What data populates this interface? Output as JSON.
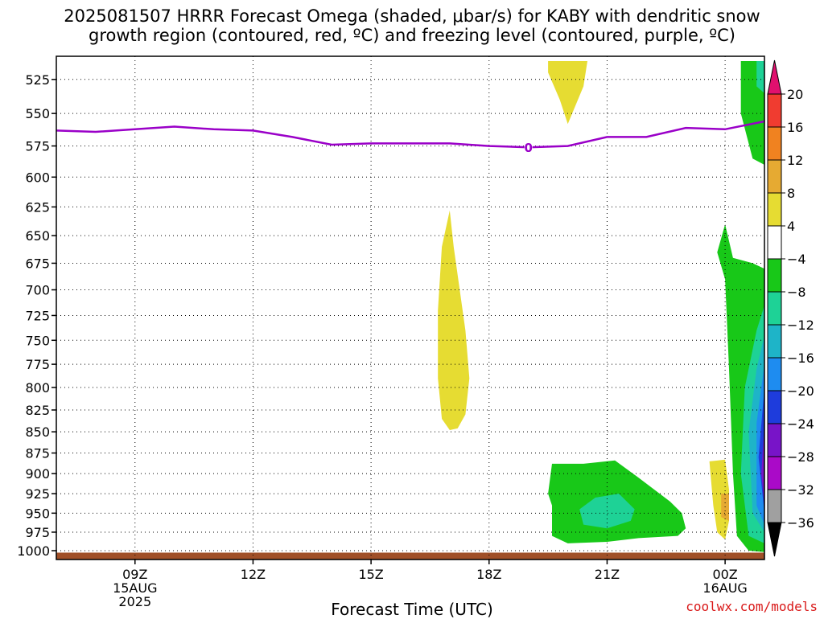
{
  "title": {
    "line1": "2025081507 HRRR Forecast Omega (shaded, μbar/s) for KABY with dendritic snow",
    "line2": "growth region (contoured, red, ºC) and freezing level (contoured, purple, ºC)"
  },
  "xlabel": "Forecast Time (UTC)",
  "credit": "coolwx.com/models",
  "chart_data": {
    "type": "heatmap",
    "title": "2025081507 HRRR Forecast Omega (shaded, μbar/s) for KABY with dendritic snow growth region (contoured, red, ºC) and freezing level (contoured, purple, ºC)",
    "xlabel": "Forecast Time (UTC)",
    "ylabel": "",
    "x_unit": "forecast hour from 2025081507",
    "xlim": [
      7,
      25
    ],
    "y_scale": "log-pressure",
    "ylim": [
      1000,
      512
    ],
    "y_ticks": [
      525,
      550,
      575,
      600,
      625,
      650,
      675,
      700,
      725,
      750,
      775,
      800,
      825,
      850,
      875,
      900,
      925,
      950,
      975,
      1000
    ],
    "x_ticks": [
      {
        "hour": 9,
        "lines": [
          "09Z",
          "15AUG",
          "2025"
        ]
      },
      {
        "hour": 12,
        "lines": [
          "12Z"
        ]
      },
      {
        "hour": 15,
        "lines": [
          "15Z"
        ]
      },
      {
        "hour": 18,
        "lines": [
          "18Z"
        ]
      },
      {
        "hour": 21,
        "lines": [
          "21Z"
        ]
      },
      {
        "hour": 24,
        "lines": [
          "00Z",
          "16AUG"
        ]
      }
    ],
    "grid": true,
    "colorbar": {
      "levels": [
        36,
        20,
        16,
        12,
        8,
        4,
        -4,
        -8,
        -12,
        -16,
        -20,
        -24,
        -28,
        -32,
        -36
      ],
      "tick_labels": [
        "20",
        "16",
        "12",
        "8",
        "4",
        "−4",
        "−8",
        "−12",
        "−16",
        "−20",
        "−24",
        "−28",
        "−32",
        "−36"
      ],
      "colors": [
        "#e0106e",
        "#f03c30",
        "#f08220",
        "#e6aa32",
        "#e6dc32",
        "#ffffff",
        "#18c818",
        "#1ed296",
        "#1eb4c8",
        "#1e8cf0",
        "#1e3cdc",
        "#7814c8",
        "#aa0ac8",
        "#a0a0a0",
        "#000000"
      ]
    },
    "freezing_level": {
      "label": "0",
      "color": "#9a00c8",
      "points": [
        {
          "hour": 7.0,
          "p": 563
        },
        {
          "hour": 8.0,
          "p": 564
        },
        {
          "hour": 9.0,
          "p": 562
        },
        {
          "hour": 10.0,
          "p": 560
        },
        {
          "hour": 11.0,
          "p": 562
        },
        {
          "hour": 12.0,
          "p": 563
        },
        {
          "hour": 13.0,
          "p": 568
        },
        {
          "hour": 14.0,
          "p": 574
        },
        {
          "hour": 15.0,
          "p": 573
        },
        {
          "hour": 16.0,
          "p": 573
        },
        {
          "hour": 17.0,
          "p": 573
        },
        {
          "hour": 18.0,
          "p": 575
        },
        {
          "hour": 19.0,
          "p": 576
        },
        {
          "hour": 20.0,
          "p": 575
        },
        {
          "hour": 21.0,
          "p": 568
        },
        {
          "hour": 22.0,
          "p": 568
        },
        {
          "hour": 23.0,
          "p": 561
        },
        {
          "hour": 24.0,
          "p": 562
        },
        {
          "hour": 25.0,
          "p": 556
        }
      ]
    },
    "regions": [
      {
        "value": 4,
        "color": "#e6dc32",
        "points": [
          [
            19.5,
            512
          ],
          [
            20.5,
            512
          ],
          [
            20.4,
            530
          ],
          [
            20.0,
            558
          ],
          [
            19.8,
            540
          ],
          [
            19.5,
            520
          ]
        ]
      },
      {
        "value": 4,
        "color": "#e6dc32",
        "points": [
          [
            17.0,
            628
          ],
          [
            17.1,
            660
          ],
          [
            17.4,
            740
          ],
          [
            17.5,
            790
          ],
          [
            17.4,
            830
          ],
          [
            17.2,
            846
          ],
          [
            17.0,
            848
          ],
          [
            16.8,
            835
          ],
          [
            16.7,
            790
          ],
          [
            16.7,
            720
          ],
          [
            16.8,
            660
          ]
        ]
      },
      {
        "value": -4,
        "color": "#18c818",
        "points": [
          [
            19.6,
            888
          ],
          [
            20.4,
            888
          ],
          [
            21.2,
            884
          ],
          [
            21.8,
            905
          ],
          [
            22.6,
            935
          ],
          [
            22.9,
            950
          ],
          [
            23.0,
            970
          ],
          [
            22.8,
            980
          ],
          [
            21.8,
            983
          ],
          [
            21.0,
            988
          ],
          [
            20.0,
            990
          ],
          [
            19.6,
            980
          ],
          [
            19.6,
            940
          ],
          [
            19.5,
            925
          ]
        ]
      },
      {
        "value": -8,
        "color": "#1ed296",
        "points": [
          [
            20.7,
            930
          ],
          [
            21.3,
            925
          ],
          [
            21.7,
            945
          ],
          [
            21.6,
            960
          ],
          [
            21.0,
            970
          ],
          [
            20.4,
            965
          ],
          [
            20.3,
            945
          ]
        ]
      },
      {
        "value": 4,
        "color": "#e6dc32",
        "points": [
          [
            23.6,
            885
          ],
          [
            24.0,
            883
          ],
          [
            24.1,
            920
          ],
          [
            24.1,
            960
          ],
          [
            24.0,
            985
          ],
          [
            23.8,
            975
          ],
          [
            23.7,
            940
          ]
        ]
      },
      {
        "value": 8,
        "color": "#e6aa32",
        "points": [
          [
            23.9,
            925
          ],
          [
            24.1,
            925
          ],
          [
            24.1,
            960
          ],
          [
            23.9,
            955
          ]
        ]
      },
      {
        "value": -4,
        "color": "#18c818",
        "points": [
          [
            24.4,
            512
          ],
          [
            25.0,
            512
          ],
          [
            25.0,
            590
          ],
          [
            24.7,
            585
          ],
          [
            24.4,
            550
          ]
        ]
      },
      {
        "value": -8,
        "color": "#1ed296",
        "points": [
          [
            24.8,
            512
          ],
          [
            25.0,
            512
          ],
          [
            25.0,
            535
          ],
          [
            24.8,
            530
          ]
        ]
      },
      {
        "value": -4,
        "color": "#18c818",
        "points": [
          [
            24.0,
            640
          ],
          [
            24.2,
            670
          ],
          [
            24.7,
            675
          ],
          [
            25.0,
            680
          ],
          [
            25.0,
            1002
          ],
          [
            24.6,
            1000
          ],
          [
            24.3,
            980
          ],
          [
            24.2,
            900
          ],
          [
            24.1,
            780
          ],
          [
            24.0,
            690
          ],
          [
            23.8,
            665
          ]
        ]
      },
      {
        "value": -8,
        "color": "#1ed296",
        "points": [
          [
            25.0,
            715
          ],
          [
            24.8,
            740
          ],
          [
            24.5,
            800
          ],
          [
            24.4,
            900
          ],
          [
            24.6,
            980
          ],
          [
            25.0,
            990
          ]
        ]
      },
      {
        "value": -12,
        "color": "#1eb4c8",
        "points": [
          [
            25.0,
            745
          ],
          [
            24.8,
            780
          ],
          [
            24.6,
            850
          ],
          [
            24.7,
            950
          ],
          [
            25.0,
            975
          ]
        ]
      },
      {
        "value": -16,
        "color": "#1e8cf0",
        "points": [
          [
            25.0,
            775
          ],
          [
            24.8,
            840
          ],
          [
            24.8,
            940
          ],
          [
            25.0,
            965
          ]
        ]
      },
      {
        "value": -20,
        "color": "#1e3cdc",
        "points": [
          [
            25.0,
            800
          ],
          [
            24.85,
            880
          ],
          [
            25.0,
            950
          ]
        ]
      },
      {
        "value": -24,
        "color": "#7814c8",
        "points": [
          [
            25.0,
            840
          ],
          [
            24.92,
            900
          ],
          [
            25.0,
            940
          ]
        ]
      }
    ],
    "terrain": {
      "p": 1006,
      "color": "#a05028"
    }
  }
}
